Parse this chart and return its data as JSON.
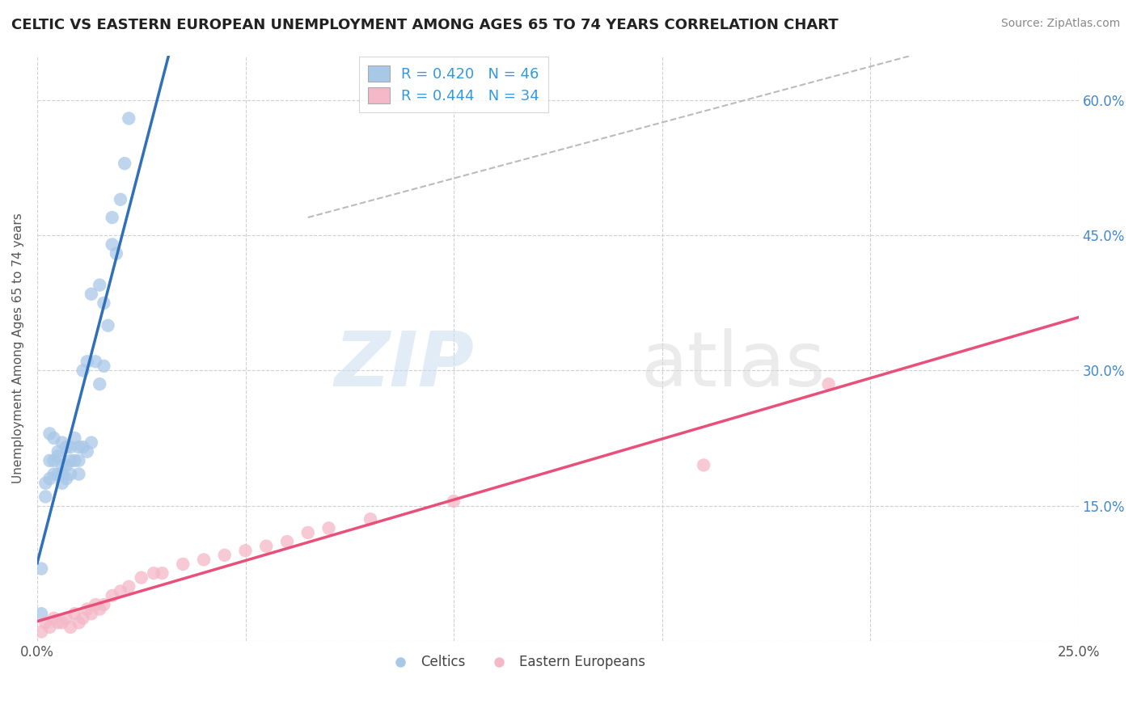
{
  "title": "CELTIC VS EASTERN EUROPEAN UNEMPLOYMENT AMONG AGES 65 TO 74 YEARS CORRELATION CHART",
  "source": "Source: ZipAtlas.com",
  "ylabel": "Unemployment Among Ages 65 to 74 years",
  "xlabel": "",
  "xlim": [
    0.0,
    0.25
  ],
  "ylim": [
    0.0,
    0.65
  ],
  "xticks": [
    0.0,
    0.05,
    0.1,
    0.15,
    0.2,
    0.25
  ],
  "xtick_labels": [
    "0.0%",
    "",
    "",
    "",
    "",
    "25.0%"
  ],
  "yticks": [
    0.0,
    0.15,
    0.3,
    0.45,
    0.6
  ],
  "ytick_labels": [
    "",
    "15.0%",
    "30.0%",
    "45.0%",
    "60.0%"
  ],
  "celtics_color": "#a8c8e8",
  "eastern_color": "#f4b8c8",
  "celtics_line_color": "#3070b8",
  "eastern_line_color": "#e8507a",
  "R_celtics": 0.42,
  "N_celtics": 46,
  "R_eastern": 0.444,
  "N_eastern": 34,
  "background_color": "#ffffff",
  "grid_color": "#d0d0d0",
  "celtics_x": [
    0.001,
    0.001,
    0.002,
    0.002,
    0.003,
    0.003,
    0.003,
    0.004,
    0.004,
    0.004,
    0.005,
    0.005,
    0.005,
    0.006,
    0.006,
    0.006,
    0.006,
    0.007,
    0.007,
    0.007,
    0.008,
    0.008,
    0.008,
    0.009,
    0.009,
    0.01,
    0.01,
    0.01,
    0.011,
    0.011,
    0.012,
    0.012,
    0.013,
    0.013,
    0.014,
    0.015,
    0.015,
    0.016,
    0.016,
    0.017,
    0.018,
    0.018,
    0.019,
    0.02,
    0.021,
    0.022
  ],
  "celtics_y": [
    0.03,
    0.08,
    0.16,
    0.175,
    0.18,
    0.2,
    0.23,
    0.185,
    0.2,
    0.225,
    0.185,
    0.205,
    0.21,
    0.175,
    0.185,
    0.195,
    0.22,
    0.18,
    0.195,
    0.215,
    0.185,
    0.2,
    0.215,
    0.2,
    0.225,
    0.185,
    0.2,
    0.215,
    0.215,
    0.3,
    0.21,
    0.31,
    0.22,
    0.385,
    0.31,
    0.285,
    0.395,
    0.305,
    0.375,
    0.35,
    0.44,
    0.47,
    0.43,
    0.49,
    0.53,
    0.58
  ],
  "eastern_x": [
    0.001,
    0.002,
    0.003,
    0.004,
    0.005,
    0.006,
    0.007,
    0.008,
    0.009,
    0.01,
    0.011,
    0.012,
    0.013,
    0.014,
    0.015,
    0.016,
    0.018,
    0.02,
    0.022,
    0.025,
    0.028,
    0.03,
    0.035,
    0.04,
    0.045,
    0.05,
    0.055,
    0.06,
    0.065,
    0.07,
    0.08,
    0.1,
    0.16,
    0.19
  ],
  "eastern_y": [
    0.01,
    0.02,
    0.015,
    0.025,
    0.02,
    0.02,
    0.025,
    0.015,
    0.03,
    0.02,
    0.025,
    0.035,
    0.03,
    0.04,
    0.035,
    0.04,
    0.05,
    0.055,
    0.06,
    0.07,
    0.075,
    0.075,
    0.085,
    0.09,
    0.095,
    0.1,
    0.105,
    0.11,
    0.12,
    0.125,
    0.135,
    0.155,
    0.195,
    0.285
  ],
  "diag_line_x": [
    0.065,
    0.21
  ],
  "diag_line_y": [
    0.47,
    0.65
  ]
}
